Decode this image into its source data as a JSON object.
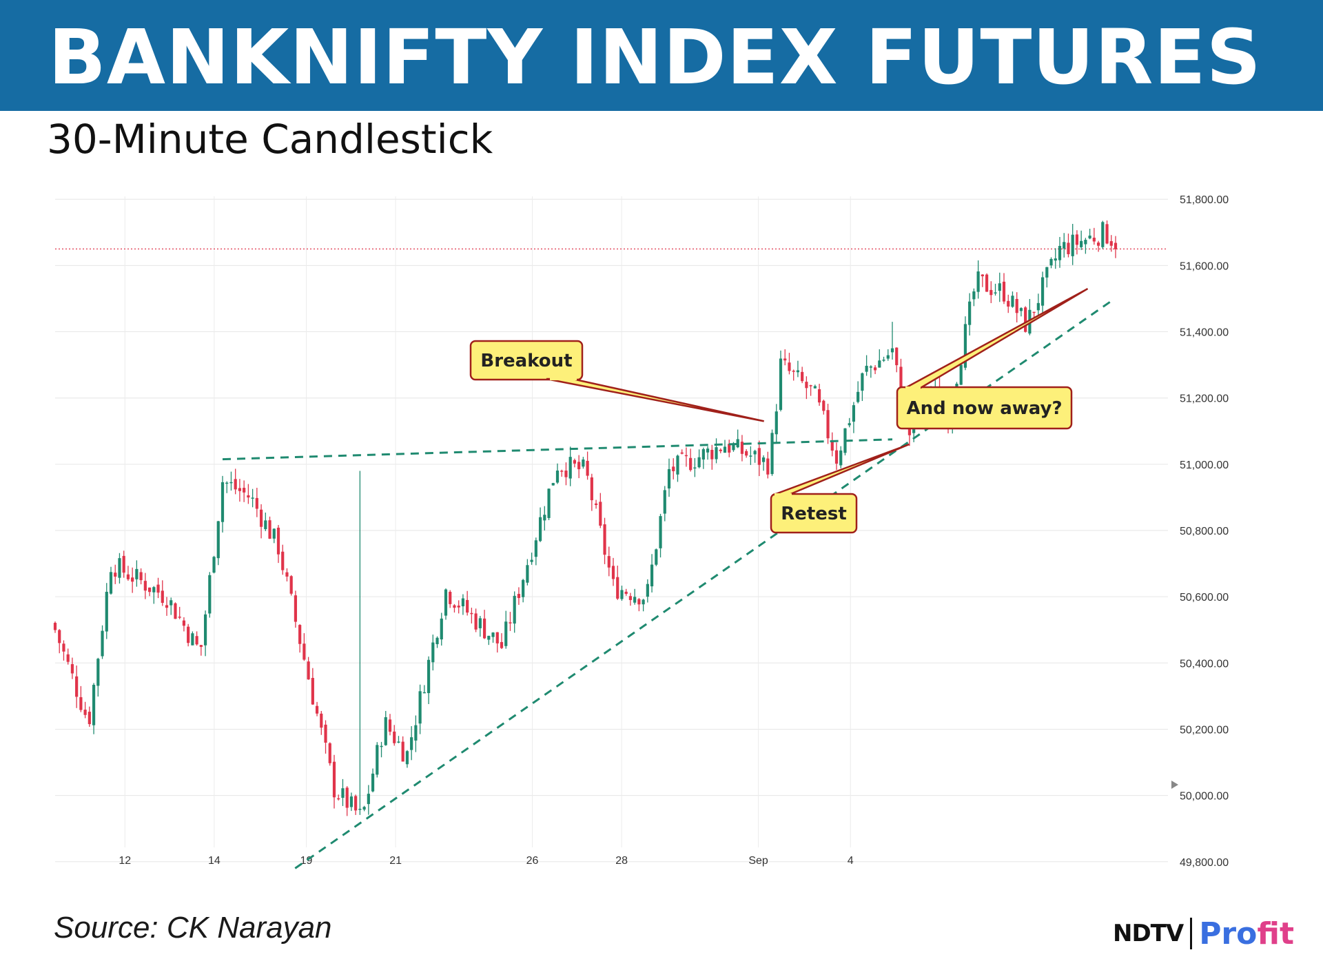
{
  "header": {
    "title": "BANKNIFTY INDEX FUTURES",
    "subtitle": "30-Minute Candlestick"
  },
  "footer": {
    "source": "Source: CK Narayan",
    "logo_ndtv": "NDTV",
    "logo_pro": "Pro",
    "logo_fit": "fit"
  },
  "colors": {
    "banner": "#166ca3",
    "up": "#1f8a70",
    "down": "#e0344a",
    "trendline": "#1f8a70",
    "callout_fill": "#fdf07a",
    "callout_border": "#a0201a",
    "price_line": "#e0344a"
  },
  "chart_data": {
    "type": "candlestick",
    "title": "30-Minute Candlestick",
    "y_ticks": [
      49800,
      50000,
      50200,
      50400,
      50600,
      50800,
      51000,
      51200,
      51400,
      51600,
      51800
    ],
    "y_tick_labels": [
      "49,800.00",
      "50,000.00",
      "50,200.00",
      "50,400.00",
      "50,600.00",
      "50,800.00",
      "51,000.00",
      "51,200.00",
      "51,400.00",
      "51,600.00",
      "51,800.00"
    ],
    "ylim": [
      49760,
      51840
    ],
    "x_ticks": [
      "12",
      "14",
      "19",
      "21",
      "26",
      "28",
      "Sep",
      "4"
    ],
    "grid": true,
    "current_price": 51650,
    "path": [
      {
        "session": 0,
        "price": 50500
      },
      {
        "session": 0.6,
        "price": 50220
      },
      {
        "session": 1,
        "price": 50700
      },
      {
        "session": 2,
        "price": 50600
      },
      {
        "session": 2.6,
        "price": 50430
      },
      {
        "session": 3,
        "price": 50950
      },
      {
        "session": 3.5,
        "price": 50900
      },
      {
        "session": 4,
        "price": 50750
      },
      {
        "session": 5,
        "price": 50020
      },
      {
        "session": 5.5,
        "price": 49930
      },
      {
        "session": 5.9,
        "price": 50220
      },
      {
        "session": 6.3,
        "price": 50120
      },
      {
        "session": 7,
        "price": 50620
      },
      {
        "session": 8,
        "price": 50450
      },
      {
        "session": 9,
        "price": 51000
      },
      {
        "session": 9.5,
        "price": 50980
      },
      {
        "session": 10,
        "price": 50630
      },
      {
        "session": 10.6,
        "price": 50600
      },
      {
        "session": 11,
        "price": 50980
      },
      {
        "session": 12,
        "price": 51060
      },
      {
        "session": 12.8,
        "price": 51000
      },
      {
        "session": 13,
        "price": 51300
      },
      {
        "session": 13.6,
        "price": 51210
      },
      {
        "session": 14,
        "price": 51020
      },
      {
        "session": 14.5,
        "price": 51280
      },
      {
        "session": 15,
        "price": 51340
      },
      {
        "session": 15.3,
        "price": 51090
      },
      {
        "session": 15.7,
        "price": 51220
      },
      {
        "session": 16,
        "price": 51150
      },
      {
        "session": 16.5,
        "price": 51550
      },
      {
        "session": 17,
        "price": 51520
      },
      {
        "session": 17.4,
        "price": 51420
      },
      {
        "session": 18,
        "price": 51650
      },
      {
        "session": 18.8,
        "price": 51700
      },
      {
        "session": 19,
        "price": 51670
      }
    ],
    "spikes": [
      {
        "session": 5.5,
        "high": 50980
      },
      {
        "session": 15.0,
        "high": 51430
      }
    ],
    "trendlines": [
      {
        "name": "resistance",
        "from": {
          "session": 3.0,
          "price": 51015
        },
        "to": {
          "session": 15.0,
          "price": 51075
        }
      },
      {
        "name": "support",
        "from": {
          "session": 4.3,
          "price": 49780
        },
        "to": {
          "session": 18.9,
          "price": 51490
        }
      }
    ],
    "annotations": [
      {
        "text": "Breakout",
        "target": {
          "session": 12.7,
          "price": 51130
        }
      },
      {
        "text": "Retest",
        "target": {
          "session": 15.3,
          "price": 51060
        }
      },
      {
        "text": "And now away?",
        "target": {
          "session": 18.5,
          "price": 51530
        }
      }
    ]
  }
}
